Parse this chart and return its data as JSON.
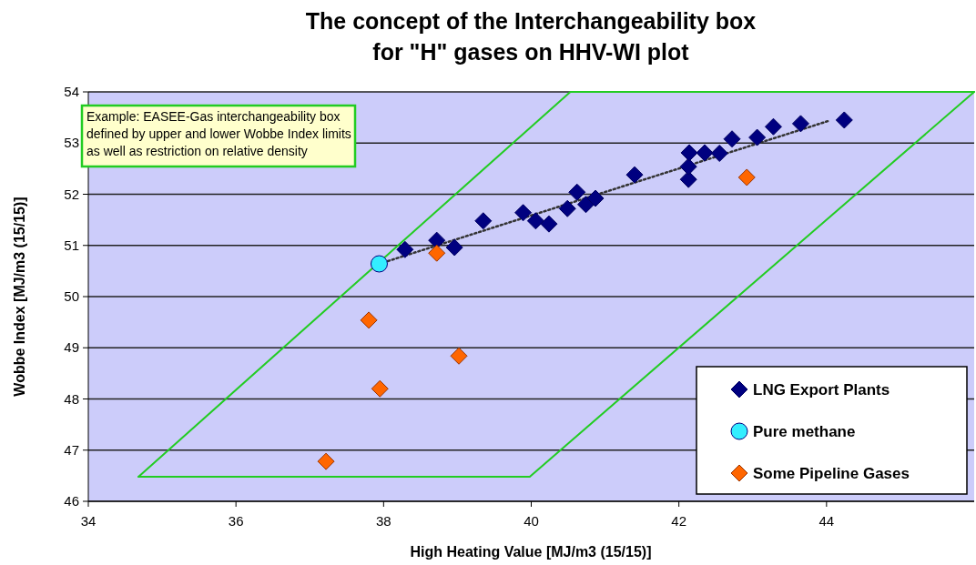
{
  "chart_data": {
    "type": "scatter",
    "title": "The concept of the Interchangeability box\nfor \"H\" gases on HHV-WI plot",
    "xlabel": "High Heating Value [MJ/m3 (15/15)]",
    "ylabel": "Wobbe Index [MJ/m3 (15/15)]",
    "annotations": [
      "Example: EASEE-Gas interchangeability box\ndefined by upper and lower Wobbe Index limits\nas well as restriction on relative density"
    ],
    "xlim": [
      34,
      46
    ],
    "xticks": [
      34,
      36,
      38,
      40,
      42,
      44
    ],
    "ylim": [
      46,
      54
    ],
    "yticks": [
      46,
      47,
      48,
      49,
      50,
      51,
      52,
      53,
      54
    ],
    "grid": "y",
    "legend": "bottom right",
    "series": [
      {
        "type": "line",
        "color": "#22cc22",
        "line_style": "solid",
        "marker": "none",
        "x": [
          34.68,
          39.98,
          46
        ],
        "values": [
          46.48,
          46.48,
          54
        ]
      },
      {
        "type": "line",
        "color": "#22cc22",
        "line_style": "solid",
        "marker": "none",
        "x": [
          34.68,
          40.53,
          46
        ],
        "values": [
          46.48,
          54,
          54
        ]
      },
      {
        "type": "line",
        "color": "#333333",
        "line_style": "dotted",
        "marker": "none",
        "x": [
          37.94,
          44.02
        ],
        "values": [
          50.64,
          53.43
        ]
      },
      {
        "name": "LNG Export Plants",
        "color": "#000080",
        "marker": "diamond",
        "x": [
          38.29,
          38.72,
          38.96,
          39.35,
          39.89,
          40.06,
          40.24,
          40.49,
          40.62,
          40.74,
          40.87,
          41.4,
          42.13,
          42.13,
          42.14,
          42.35,
          42.55,
          42.72,
          43.06,
          43.28,
          43.65,
          44.24
        ],
        "values": [
          50.92,
          51.1,
          50.96,
          51.48,
          51.64,
          51.48,
          51.42,
          51.72,
          52.04,
          51.8,
          51.92,
          52.38,
          52.29,
          52.54,
          52.81,
          52.81,
          52.8,
          53.08,
          53.11,
          53.32,
          53.38,
          53.45
        ]
      },
      {
        "name": "Pure methane",
        "color": "#33eeff",
        "marker": "circle",
        "x": [
          37.94
        ],
        "values": [
          50.64
        ]
      },
      {
        "name": "Some Pipeline Gases",
        "color": "#ff6600",
        "marker": "diamond",
        "x": [
          42.92,
          38.72,
          37.8,
          39.02,
          37.95,
          37.22
        ],
        "values": [
          52.33,
          50.85,
          49.54,
          48.84,
          48.2,
          46.78
        ]
      }
    ]
  }
}
